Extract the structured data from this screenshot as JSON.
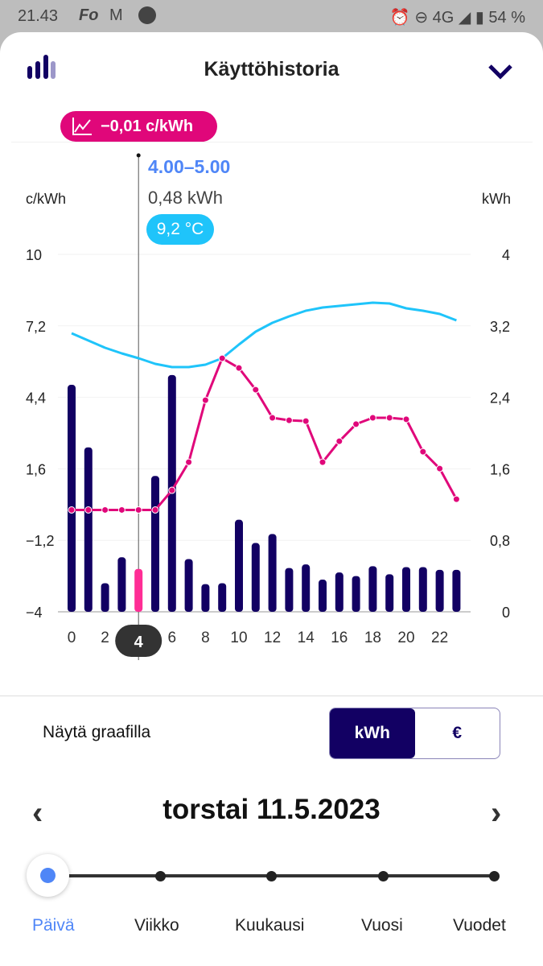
{
  "status_bar": {
    "time": "21.43",
    "app_icons": [
      "Fo",
      "M"
    ],
    "network": "4G",
    "battery": "54 %"
  },
  "header": {
    "title": "Käyttöhistoria",
    "icon": "bar-chart-icon",
    "collapse_icon": "chevron-down-icon"
  },
  "tooltip": {
    "price": "−0,01 c/kWh",
    "hour_range": "4.00–5.00",
    "consumption": "0,48 kWh",
    "temperature": "9,2 °C",
    "selected_hour": "4"
  },
  "colors": {
    "bars": "#120063",
    "selected_bar": "#ff2d95",
    "price_line": "#e0077a",
    "temperature_line": "#1fc4fa",
    "accent": "#4f86f7"
  },
  "chart_data": {
    "type": "bar+line",
    "left_axis": {
      "label": "c/kWh",
      "ticks": [
        "10",
        "7,2",
        "4,4",
        "1,6",
        "−1,2",
        "−4"
      ],
      "range": [
        -4,
        10
      ]
    },
    "right_axis": {
      "label": "kWh",
      "ticks": [
        "4",
        "3,2",
        "2,4",
        "1,6",
        "0,8",
        "0"
      ],
      "range": [
        0,
        4
      ]
    },
    "x_ticks": [
      "0",
      "2",
      "4",
      "6",
      "8",
      "10",
      "12",
      "14",
      "16",
      "18",
      "20",
      "22"
    ],
    "hours": [
      0,
      1,
      2,
      3,
      4,
      5,
      6,
      7,
      8,
      9,
      10,
      11,
      12,
      13,
      14,
      15,
      16,
      17,
      18,
      19,
      20,
      21,
      22,
      23
    ],
    "consumption_kwh": [
      2.54,
      1.84,
      0.32,
      0.61,
      0.48,
      1.52,
      2.65,
      0.59,
      0.31,
      0.32,
      1.03,
      0.77,
      0.87,
      0.49,
      0.53,
      0.36,
      0.44,
      0.4,
      0.51,
      0.42,
      0.5,
      0.5,
      0.47,
      0.47
    ],
    "price_c_kwh": [
      -0.01,
      -0.01,
      -0.01,
      -0.01,
      -0.01,
      -0.01,
      0.76,
      1.86,
      4.29,
      5.93,
      5.55,
      4.7,
      3.6,
      3.5,
      3.47,
      1.86,
      2.68,
      3.35,
      3.6,
      3.6,
      3.54,
      2.27,
      1.61,
      0.41
    ],
    "temperature_c": [
      10.75,
      10.3,
      9.85,
      9.5,
      9.2,
      8.85,
      8.65,
      8.65,
      8.8,
      9.2,
      10.05,
      10.85,
      11.4,
      11.8,
      12.15,
      12.35,
      12.45,
      12.55,
      12.65,
      12.6,
      12.3,
      12.15,
      11.95,
      11.55
    ],
    "temperature_range": [
      -6.55,
      15.65
    ],
    "selected_hour": 4
  },
  "display": {
    "label": "Näytä graafilla",
    "options": [
      "kWh",
      "€"
    ],
    "selected": "kWh"
  },
  "date_nav": {
    "date": "torstai 11.5.2023",
    "prev": "‹",
    "next": "›"
  },
  "period": {
    "options": [
      "Päivä",
      "Viikko",
      "Kuukausi",
      "Vuosi",
      "Vuodet"
    ],
    "selected": "Päivä"
  }
}
